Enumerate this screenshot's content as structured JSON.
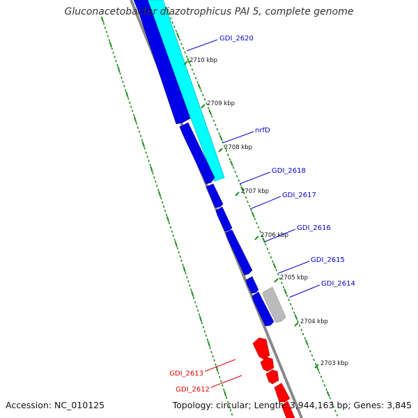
{
  "title": "Gluconacetobacter diazotrophicus PAI 5, complete genome",
  "accession": "Accession: NC_010125",
  "summary": "Topology: circular; Length: 3,944,163 bp; Genes: 3,845",
  "colors": {
    "forward_gene": "#0000e6",
    "reverse_gene": "#ff0000",
    "rna_gene": "#00ffff",
    "other_gene": "#bbbbbb",
    "backbone": "#888888",
    "gene_label_forward": "#0000cc",
    "gene_label_reverse": "#dd0000",
    "tick_marks": "#1a8c1a"
  },
  "scale_ticks": [
    {
      "label": "2710 kbp"
    },
    {
      "label": "2709 kbp"
    },
    {
      "label": "2708 kbp"
    },
    {
      "label": "2707 kbp"
    },
    {
      "label": "2706 kbp"
    },
    {
      "label": "2705 kbp"
    },
    {
      "label": "2704 kbp"
    },
    {
      "label": "2703 kbp"
    }
  ],
  "gene_labels": [
    {
      "text": "GDI_2620",
      "strand": "forward"
    },
    {
      "text": "nrfD",
      "strand": "forward"
    },
    {
      "text": "GDI_2618",
      "strand": "forward"
    },
    {
      "text": "GDI_2617",
      "strand": "forward"
    },
    {
      "text": "GDI_2616",
      "strand": "forward"
    },
    {
      "text": "GDI_2615",
      "strand": "forward"
    },
    {
      "text": "GDI_2614",
      "strand": "forward"
    },
    {
      "text": "GDI_2613",
      "strand": "reverse"
    },
    {
      "text": "GDI_2612",
      "strand": "reverse"
    }
  ]
}
